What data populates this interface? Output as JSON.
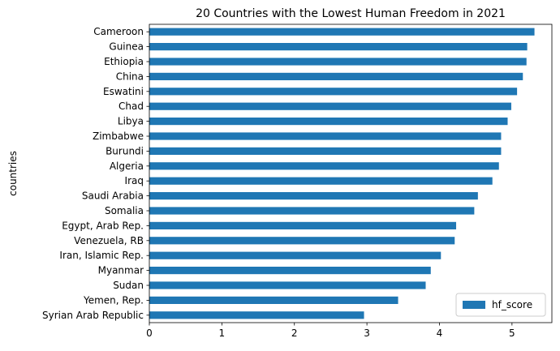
{
  "chart_data": {
    "type": "bar",
    "orientation": "horizontal",
    "title": "20 Countries with the Lowest Human Freedom in 2021",
    "xlabel": "",
    "ylabel": "countries",
    "xlim": [
      0,
      5.55
    ],
    "xticks": [
      0,
      1,
      2,
      3,
      4,
      5
    ],
    "grid": false,
    "legend_position": "bottom-right",
    "bar_color": "#1f77b4",
    "categories": [
      "Syrian Arab Republic",
      "Yemen, Rep.",
      "Sudan",
      "Myanmar",
      "Iran, Islamic Rep.",
      "Venezuela, RB",
      "Egypt, Arab Rep.",
      "Somalia",
      "Saudi Arabia",
      "Iraq",
      "Algeria",
      "Burundi",
      "Zimbabwe",
      "Libya",
      "Chad",
      "Eswatini",
      "China",
      "Ethiopia",
      "Guinea",
      "Cameroon"
    ],
    "series": [
      {
        "name": "hf_score",
        "values": [
          2.96,
          3.43,
          3.81,
          3.88,
          4.02,
          4.21,
          4.23,
          4.48,
          4.53,
          4.73,
          4.82,
          4.85,
          4.85,
          4.94,
          4.99,
          5.07,
          5.15,
          5.2,
          5.21,
          5.31
        ]
      }
    ]
  }
}
